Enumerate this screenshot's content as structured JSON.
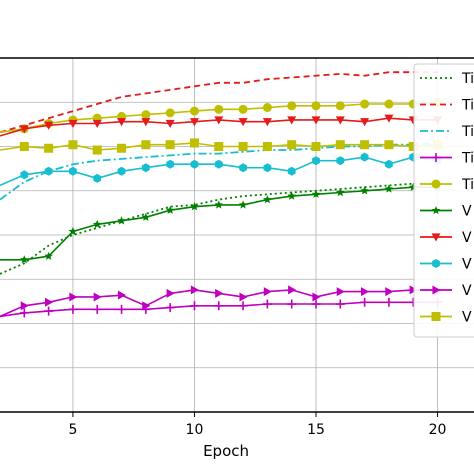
{
  "chart_data": {
    "type": "line",
    "xlabel": "Epoch",
    "ylabel": "",
    "title": "",
    "xlim": [
      2,
      21.5
    ],
    "ylim": [
      0,
      1
    ],
    "x_ticks": [
      5,
      10,
      15,
      20
    ],
    "grid": true,
    "legend_placement": "right",
    "x": [
      2,
      3,
      4,
      5,
      6,
      7,
      8,
      9,
      10,
      11,
      12,
      13,
      14,
      15,
      16,
      17,
      18,
      19,
      20
    ],
    "series": [
      {
        "name": "Ti",
        "color": "#008000",
        "line": "dotted",
        "marker": "none",
        "values": [
          0.39,
          0.42,
          0.47,
          0.5,
          0.52,
          0.54,
          0.56,
          0.58,
          0.585,
          0.6,
          0.61,
          0.615,
          0.62,
          0.625,
          0.63,
          0.635,
          0.64,
          0.645,
          0.65
        ]
      },
      {
        "name": "Ti",
        "color": "#e41a1c",
        "line": "dashed",
        "marker": "none",
        "values": [
          0.79,
          0.81,
          0.83,
          0.85,
          0.87,
          0.89,
          0.9,
          0.91,
          0.92,
          0.93,
          0.93,
          0.94,
          0.945,
          0.95,
          0.955,
          0.95,
          0.96,
          0.96,
          0.96
        ]
      },
      {
        "name": "Ti",
        "color": "#17becf",
        "line": "dashdot",
        "marker": "none",
        "values": [
          0.6,
          0.65,
          0.68,
          0.7,
          0.71,
          0.715,
          0.72,
          0.725,
          0.73,
          0.73,
          0.735,
          0.74,
          0.74,
          0.745,
          0.75,
          0.75,
          0.755,
          0.755,
          0.76
        ]
      },
      {
        "name": "Ti",
        "color": "#bf00bf",
        "line": "solid",
        "marker": "plus",
        "values": [
          0.27,
          0.28,
          0.285,
          0.29,
          0.29,
          0.29,
          0.29,
          0.295,
          0.3,
          0.3,
          0.3,
          0.305,
          0.305,
          0.305,
          0.305,
          0.31,
          0.31,
          0.31,
          0.31
        ]
      },
      {
        "name": "Ti",
        "color": "#bfbf00",
        "line": "solid",
        "marker": "circle",
        "values": [
          0.79,
          0.8,
          0.815,
          0.825,
          0.83,
          0.835,
          0.84,
          0.845,
          0.85,
          0.855,
          0.855,
          0.86,
          0.865,
          0.865,
          0.865,
          0.87,
          0.87,
          0.87,
          0.875
        ]
      },
      {
        "name": "V",
        "color": "#008000",
        "line": "solid",
        "marker": "star",
        "values": [
          0.43,
          0.43,
          0.44,
          0.51,
          0.53,
          0.54,
          0.55,
          0.57,
          0.58,
          0.585,
          0.585,
          0.6,
          0.61,
          0.615,
          0.62,
          0.625,
          0.63,
          0.635,
          0.635
        ]
      },
      {
        "name": "V",
        "color": "#e41a1c",
        "line": "solid",
        "marker": "triangle-down",
        "values": [
          0.78,
          0.8,
          0.81,
          0.815,
          0.815,
          0.82,
          0.82,
          0.815,
          0.82,
          0.825,
          0.82,
          0.82,
          0.825,
          0.825,
          0.825,
          0.82,
          0.83,
          0.825,
          0.825
        ]
      },
      {
        "name": "V",
        "color": "#17becf",
        "line": "solid",
        "marker": "hexagon",
        "values": [
          0.64,
          0.67,
          0.68,
          0.68,
          0.66,
          0.68,
          0.69,
          0.7,
          0.7,
          0.7,
          0.69,
          0.69,
          0.68,
          0.71,
          0.71,
          0.72,
          0.7,
          0.72,
          0.71
        ]
      },
      {
        "name": "V",
        "color": "#bf00bf",
        "line": "solid",
        "marker": "triangle-right",
        "values": [
          0.27,
          0.3,
          0.31,
          0.325,
          0.325,
          0.33,
          0.3,
          0.335,
          0.345,
          0.335,
          0.325,
          0.34,
          0.345,
          0.325,
          0.34,
          0.34,
          0.34,
          0.345,
          0.34
        ]
      },
      {
        "name": "V",
        "color": "#bfbf00",
        "line": "solid",
        "marker": "square",
        "values": [
          0.74,
          0.75,
          0.745,
          0.755,
          0.74,
          0.745,
          0.755,
          0.755,
          0.76,
          0.75,
          0.75,
          0.75,
          0.755,
          0.75,
          0.755,
          0.755,
          0.755,
          0.75,
          0.755
        ]
      }
    ]
  }
}
